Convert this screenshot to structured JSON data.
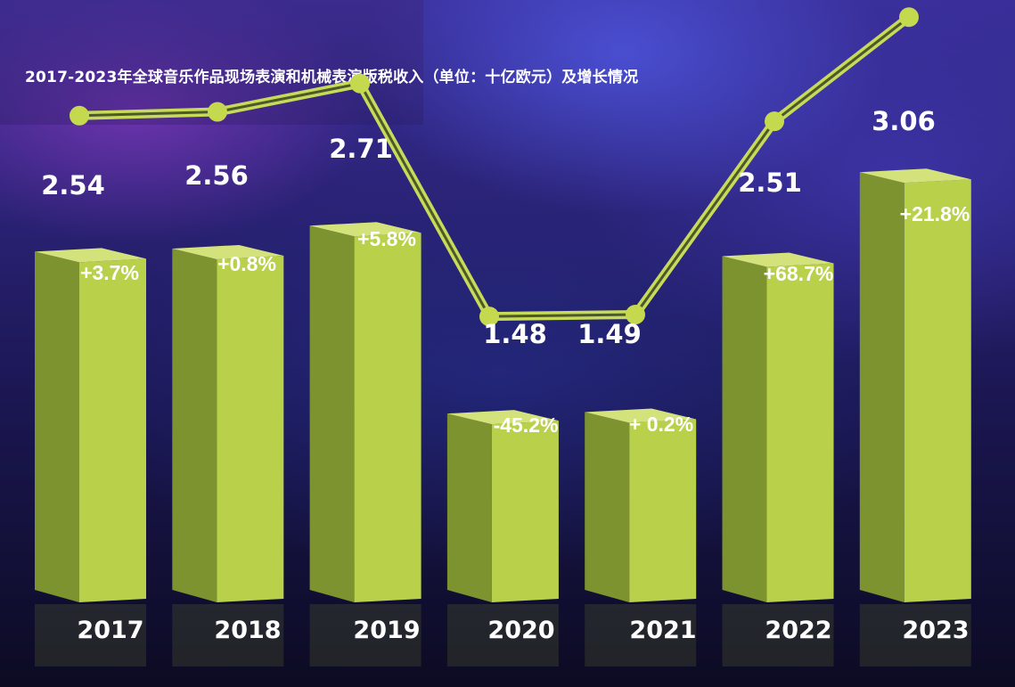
{
  "title": "2017-2023年全球音乐作品现场表演和机械表演版税收入（单位：十亿欧元）及增长情况",
  "colors": {
    "bar_front": "#b9d04a",
    "bar_side": "#7d9330",
    "bar_top": "#d3e27a",
    "line": "#c8da5a",
    "marker": "#c4d94e"
  },
  "chart_data": {
    "type": "bar",
    "categories": [
      "2017",
      "2018",
      "2019",
      "2020",
      "2021",
      "2022",
      "2023"
    ],
    "values": [
      2.54,
      2.56,
      2.71,
      1.48,
      1.49,
      2.51,
      3.06
    ],
    "value_labels": [
      "2.54",
      "2.56",
      "2.71",
      "1.48",
      "1.49",
      "2.51",
      "3.06"
    ],
    "growth_labels": [
      "+3.7%",
      "+0.8%",
      "+5.8%",
      "-45.2%",
      "+ 0.2%",
      "+68.7%",
      "+21.8%"
    ],
    "overlay": "line with markers connecting values",
    "title": "2017-2023年全球音乐作品现场表演和机械表演版税收入（单位：十亿欧元）及增长情况",
    "xlabel": "",
    "ylabel": "",
    "grid": false,
    "legend": "none"
  }
}
